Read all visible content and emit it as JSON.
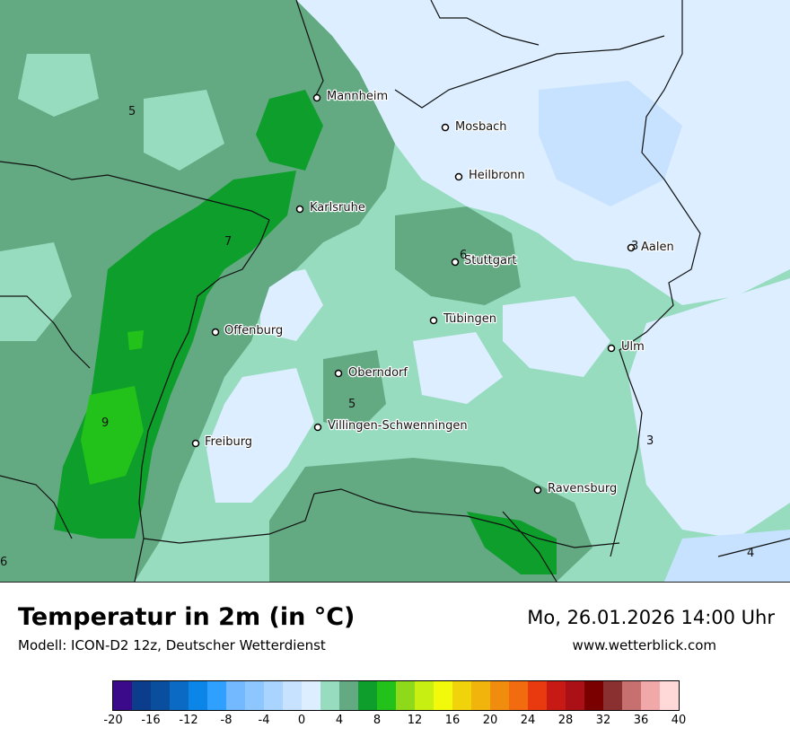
{
  "map": {
    "title": "Temperatur in 2m (in °C)",
    "model": "Modell: ICON-D2 12z, Deutscher Wetterdienst",
    "datetime": "Mo, 26.01.2026 14:00 Uhr",
    "website": "www.wetterblick.com",
    "cities": [
      {
        "name": "Mannheim"
      },
      {
        "name": "Mosbach"
      },
      {
        "name": "Heilbronn"
      },
      {
        "name": "Karlsruhe"
      },
      {
        "name": "Stuttgart"
      },
      {
        "name": "Aalen"
      },
      {
        "name": "Tübingen"
      },
      {
        "name": "Offenburg"
      },
      {
        "name": "Ulm"
      },
      {
        "name": "Oberndorf"
      },
      {
        "name": "Villingen-Schwenningen"
      },
      {
        "name": "Freiburg"
      },
      {
        "name": "Ravensburg"
      }
    ],
    "isolines": [
      "5",
      "7",
      "6",
      "3",
      "9",
      "5",
      "3",
      "4",
      "6"
    ]
  },
  "legend": {
    "unit": "°C",
    "colors": [
      "#3a0a8a",
      "#0c3c8c",
      "#0a4f9e",
      "#0b6bc4",
      "#0b86e8",
      "#2fa0ff",
      "#72b9ff",
      "#8ec7ff",
      "#a9d4ff",
      "#c6e2ff",
      "#dceeff",
      "#98dcc0",
      "#63aa82",
      "#0e9e2b",
      "#22c21a",
      "#8ed91a",
      "#c7ef12",
      "#f2f90a",
      "#f0d30b",
      "#f0b40d",
      "#f08c0e",
      "#f26b0e",
      "#e83a0e",
      "#c81a14",
      "#aa1016",
      "#7a0000",
      "#8a3030",
      "#c77070",
      "#f0a8a8",
      "#ffd8d8"
    ],
    "ticks": [
      "-20",
      "-16",
      "-12",
      "-8",
      "-4",
      "0",
      "4",
      "8",
      "12",
      "16",
      "20",
      "24",
      "28",
      "32",
      "36",
      "40"
    ]
  }
}
